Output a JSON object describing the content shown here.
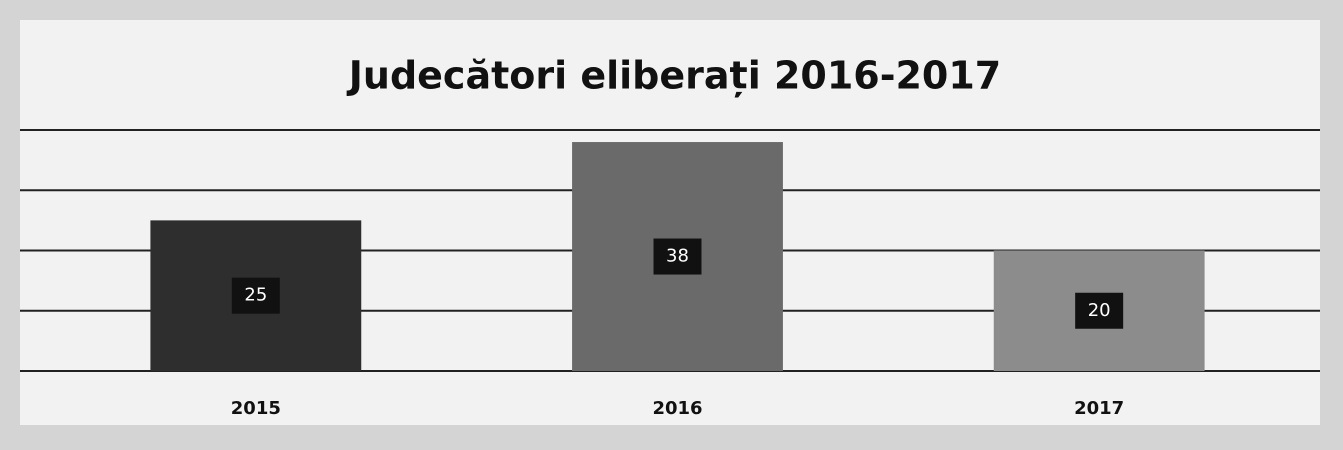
{
  "chart_data": {
    "type": "bar",
    "title": "Judecători eliberați 2016-2017",
    "categories": [
      "2015",
      "2016",
      "2017"
    ],
    "values": [
      25,
      38,
      20
    ],
    "colors": [
      "#2e2e2e",
      "#6a6a6a",
      "#8c8c8c"
    ],
    "ylim": [
      0,
      40
    ],
    "yticks": [
      0,
      10,
      20,
      30,
      40
    ],
    "grid": true
  }
}
